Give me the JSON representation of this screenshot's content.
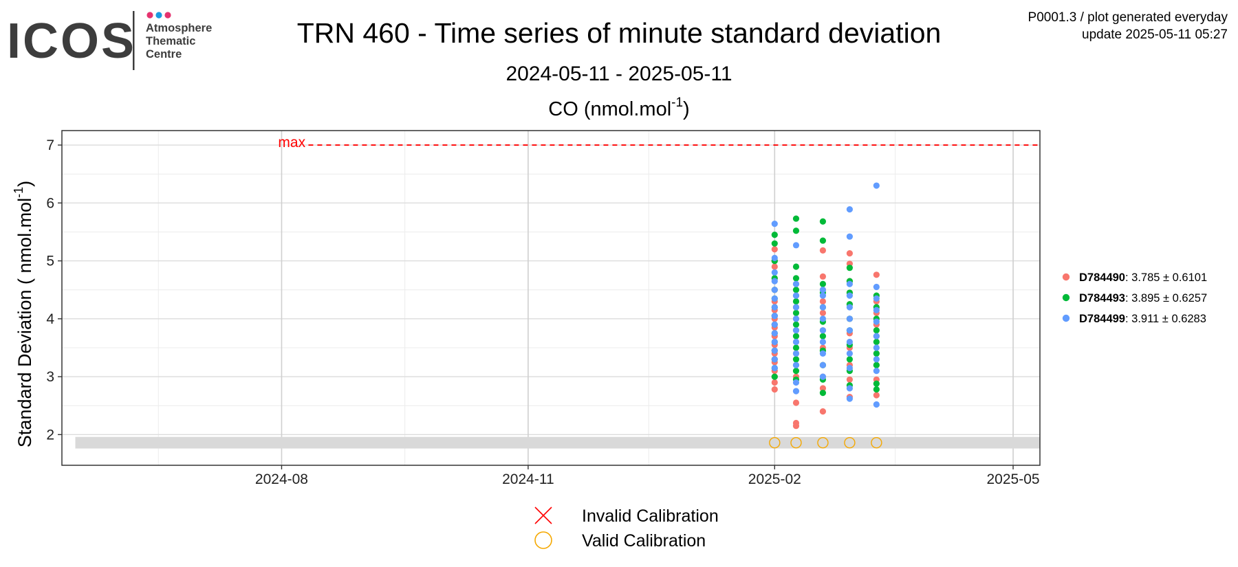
{
  "logo": {
    "word": "ICOS",
    "line1": "Atmosphere",
    "line2": "Thematic",
    "line3": "Centre",
    "dot_colors": [
      "#e5336f",
      "#1b9be0",
      "#e5336f"
    ]
  },
  "header": {
    "title": "TRN 460 - Time series of minute standard deviation",
    "subtitle": "2024-05-11 - 2025-05-11",
    "corner_line1": "P0001.3 / plot generated everyday",
    "corner_line2": "update  2025-05-11 05:27"
  },
  "chart_data": {
    "type": "scatter",
    "title": "CO (nmol.mol",
    "title_sup": "-1",
    "title_end": ")",
    "ylabel": "Standard Deviation ( nmol.mol",
    "ylabel_sup": "-1",
    "ylabel_end": ")",
    "xlim": [
      "2024-05-11",
      "2025-05-11"
    ],
    "ylim": [
      1.47,
      7.25
    ],
    "x_ticks": [
      {
        "date": "2024-08-01",
        "label": "2024-08"
      },
      {
        "date": "2024-11-01",
        "label": "2024-11"
      },
      {
        "date": "2025-02-01",
        "label": "2025-02"
      },
      {
        "date": "2025-05-01",
        "label": "2025-05"
      }
    ],
    "x_minor_ticks": [
      "2024-06-16",
      "2024-09-16",
      "2024-12-16",
      "2025-03-18"
    ],
    "y_ticks": [
      2,
      3,
      4,
      5,
      6,
      7
    ],
    "grid": true,
    "max_line": {
      "value": 7,
      "label": "max",
      "color": "#ff0000",
      "start": "2024-08-11",
      "end": "2025-05-11"
    },
    "valid_band": {
      "y_min": 1.76,
      "y_max": 1.96,
      "start": "2024-05-16",
      "end": "2025-05-11",
      "color": "#d9d9d9"
    },
    "calibrations": {
      "valid_dates": [
        "2025-02-01",
        "2025-02-09",
        "2025-02-19",
        "2025-03-01",
        "2025-03-11"
      ],
      "y": 1.86,
      "color": "#f5a800"
    },
    "series": [
      {
        "name": "D784490",
        "stats": "3.785 ± 0.6101",
        "color": "#f8766d",
        "dates": [
          "2025-02-01",
          "2025-02-09",
          "2025-02-19",
          "2025-03-01",
          "2025-03-11"
        ],
        "values": [
          [
            2.78,
            2.9,
            3.0,
            3.1,
            3.25,
            3.4,
            3.55,
            3.7,
            3.85,
            4.0,
            4.15,
            4.3,
            4.5,
            4.7,
            4.9,
            5.0,
            5.2
          ],
          [
            2.15,
            2.2,
            2.55,
            3.0,
            3.2,
            3.4,
            3.6,
            3.8,
            4.0,
            4.2,
            4.4,
            4.6
          ],
          [
            2.4,
            2.8,
            3.0,
            3.2,
            3.5,
            3.8,
            4.1,
            4.3,
            4.5,
            4.73,
            5.18
          ],
          [
            2.65,
            2.95,
            3.2,
            3.5,
            3.75,
            4.0,
            4.25,
            4.45,
            4.65,
            4.95,
            5.13
          ],
          [
            2.68,
            2.95,
            3.2,
            3.4,
            3.7,
            3.9,
            4.1,
            4.3,
            4.76
          ]
        ]
      },
      {
        "name": "D784493",
        "stats": "3.895 ± 0.6257",
        "color": "#00ba38",
        "dates": [
          "2025-02-01",
          "2025-02-09",
          "2025-02-19",
          "2025-03-01",
          "2025-03-11"
        ],
        "values": [
          [
            3.0,
            3.15,
            3.3,
            3.45,
            3.6,
            3.75,
            3.9,
            4.05,
            4.2,
            4.35,
            4.5,
            4.7,
            5.0,
            5.3,
            5.45
          ],
          [
            2.95,
            3.1,
            3.3,
            3.5,
            3.7,
            3.9,
            4.1,
            4.3,
            4.5,
            4.7,
            4.9,
            5.52,
            5.73
          ],
          [
            2.72,
            2.95,
            3.2,
            3.45,
            3.7,
            3.95,
            4.2,
            4.45,
            4.6,
            5.35,
            5.68
          ],
          [
            2.85,
            3.1,
            3.3,
            3.55,
            3.8,
            4.0,
            4.25,
            4.45,
            4.65,
            4.88
          ],
          [
            2.78,
            2.88,
            3.2,
            3.4,
            3.6,
            3.8,
            4.0,
            4.2,
            4.4
          ]
        ]
      },
      {
        "name": "D784499",
        "stats": "3.911 ± 0.6283",
        "color": "#619cff",
        "dates": [
          "2025-02-01",
          "2025-02-09",
          "2025-02-19",
          "2025-03-01",
          "2025-03-11"
        ],
        "values": [
          [
            3.15,
            3.3,
            3.45,
            3.6,
            3.75,
            3.9,
            4.05,
            4.2,
            4.35,
            4.5,
            4.65,
            4.8,
            5.05,
            5.64
          ],
          [
            2.75,
            2.9,
            3.2,
            3.4,
            3.6,
            3.8,
            4.0,
            4.2,
            4.4,
            4.6,
            5.27
          ],
          [
            3.0,
            3.2,
            3.4,
            3.6,
            3.8,
            4.0,
            4.2,
            4.4,
            4.5
          ],
          [
            2.62,
            2.8,
            3.15,
            3.4,
            3.6,
            3.8,
            4.0,
            4.2,
            4.4,
            4.6,
            5.42,
            5.89
          ],
          [
            2.52,
            3.1,
            3.3,
            3.5,
            3.7,
            3.95,
            4.15,
            4.35,
            4.55,
            6.3
          ]
        ]
      }
    ],
    "calibration_legend": {
      "invalid_label": "Invalid Calibration",
      "invalid_color": "#ff0000",
      "valid_label": "Valid Calibration",
      "valid_color": "#f5a800"
    }
  }
}
